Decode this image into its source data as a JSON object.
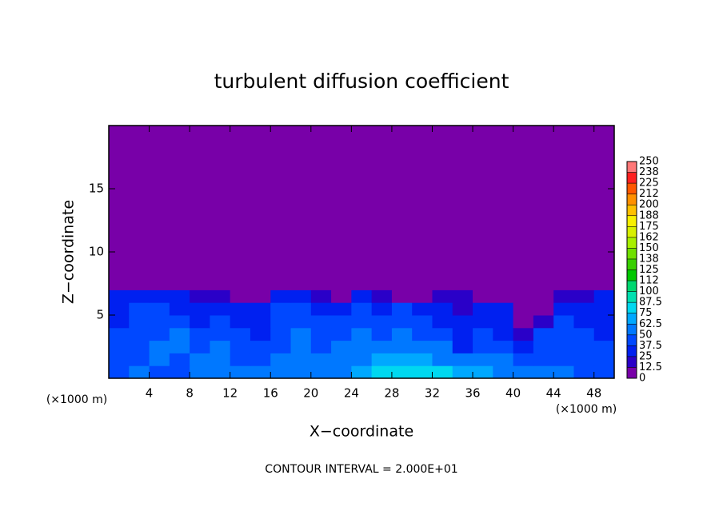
{
  "chart_data": {
    "type": "heatmap",
    "title": "turbulent diffusion coefficient",
    "xlabel": "X−coordinate",
    "ylabel": "Z−coordinate",
    "x_unit": "(×1000 m)",
    "annotation": "CONTOUR INTERVAL = 2.000E+01",
    "xlim": [
      0,
      50
    ],
    "ylim": [
      0,
      20
    ],
    "xticks": [
      4,
      8,
      12,
      16,
      20,
      24,
      28,
      32,
      36,
      40,
      44,
      48
    ],
    "yticks": [
      5,
      10,
      15
    ],
    "x_edges": [
      0,
      2,
      4,
      6,
      8,
      10,
      12,
      14,
      16,
      18,
      20,
      22,
      24,
      26,
      28,
      30,
      32,
      34,
      36,
      38,
      40,
      42,
      44,
      46,
      48,
      50
    ],
    "y_edges": [
      0,
      1,
      2,
      3,
      4,
      5,
      6,
      7,
      20
    ],
    "z": [
      [
        45,
        50,
        48,
        40,
        55,
        60,
        52,
        50,
        58,
        62,
        55,
        60,
        68,
        75,
        82,
        85,
        78,
        70,
        65,
        60,
        58,
        55,
        50,
        48,
        45
      ],
      [
        42,
        48,
        52,
        45,
        50,
        55,
        48,
        45,
        52,
        58,
        50,
        55,
        60,
        65,
        70,
        68,
        60,
        58,
        52,
        50,
        45,
        48,
        46,
        44,
        42
      ],
      [
        40,
        45,
        50,
        55,
        45,
        50,
        42,
        40,
        48,
        55,
        45,
        50,
        55,
        58,
        60,
        55,
        50,
        35,
        45,
        40,
        30,
        42,
        45,
        40,
        40
      ],
      [
        38,
        42,
        48,
        50,
        40,
        45,
        38,
        35,
        45,
        50,
        42,
        45,
        50,
        48,
        52,
        45,
        40,
        30,
        40,
        35,
        20,
        38,
        42,
        38,
        36
      ],
      [
        36,
        40,
        45,
        42,
        35,
        40,
        30,
        30,
        42,
        45,
        38,
        40,
        42,
        40,
        45,
        40,
        35,
        25,
        35,
        30,
        10,
        15,
        40,
        35,
        34
      ],
      [
        34,
        38,
        40,
        35,
        30,
        30,
        25,
        28,
        38,
        40,
        35,
        30,
        38,
        35,
        40,
        30,
        30,
        20,
        30,
        25,
        10,
        8,
        30,
        32,
        30
      ],
      [
        30,
        32,
        35,
        28,
        20,
        15,
        10,
        10,
        25,
        28,
        20,
        10,
        25,
        15,
        10,
        10,
        20,
        15,
        10,
        5,
        5,
        5,
        15,
        20,
        25
      ],
      [
        0,
        0,
        0,
        0,
        0,
        0,
        0,
        0,
        0,
        0,
        0,
        0,
        0,
        0,
        0,
        0,
        0,
        0,
        0,
        0,
        0,
        0,
        0,
        0,
        0
      ]
    ],
    "colorbar_ticks": [
      0,
      12.5,
      25,
      37.5,
      50,
      62.5,
      75,
      87.5,
      100,
      {
        "value": 112.5,
        "label": "112"
      },
      125,
      {
        "value": 137.5,
        "label": "138"
      },
      150,
      {
        "value": 162.5,
        "label": "162"
      },
      175,
      {
        "value": 187.5,
        "label": "188"
      },
      200,
      {
        "value": 212.5,
        "label": "212"
      },
      225,
      {
        "value": 237.5,
        "label": "238"
      },
      250
    ],
    "colors": [
      "#7800a8",
      "#2a00c8",
      "#0020f0",
      "#0048ff",
      "#0078ff",
      "#00a8ff",
      "#00d8f0",
      "#00e0b0",
      "#00d870",
      "#00c800",
      "#38d000",
      "#70e000",
      "#a8f000",
      "#d8f000",
      "#f8f000",
      "#ffc000",
      "#ff9000",
      "#ff5800",
      "#ff2020",
      "#ff7878"
    ]
  }
}
